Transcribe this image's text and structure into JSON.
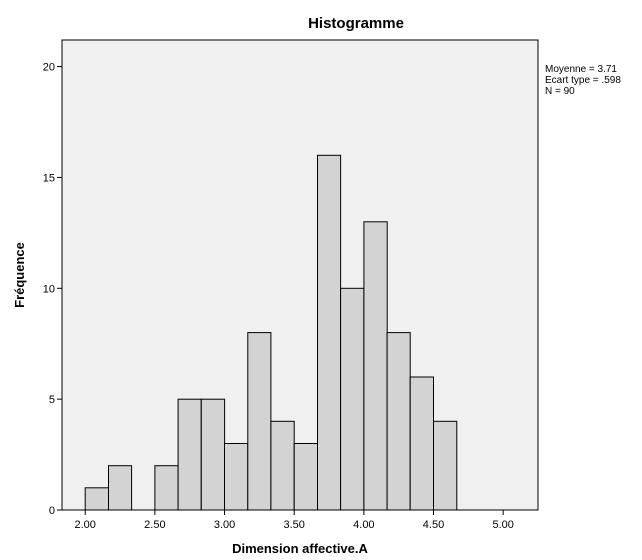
{
  "chart_data": {
    "type": "bar",
    "title": "Histogramme",
    "xlabel": "Dimension affective.A",
    "ylabel": "Fréquence",
    "xlim": [
      1.8333,
      5.25
    ],
    "ylim": [
      0,
      21.2
    ],
    "x_ticks": [
      {
        "value": 2.0,
        "label": "2.00"
      },
      {
        "value": 2.5,
        "label": "2.50"
      },
      {
        "value": 3.0,
        "label": "3.00"
      },
      {
        "value": 3.5,
        "label": "3.50"
      },
      {
        "value": 4.0,
        "label": "4.00"
      },
      {
        "value": 4.5,
        "label": "4.50"
      },
      {
        "value": 5.0,
        "label": "5.00"
      }
    ],
    "y_ticks": [
      {
        "value": 0,
        "label": "0"
      },
      {
        "value": 5,
        "label": "5"
      },
      {
        "value": 10,
        "label": "10"
      },
      {
        "value": 15,
        "label": "15"
      },
      {
        "value": 20,
        "label": "20"
      }
    ],
    "bins": [
      {
        "start": 2.0,
        "end": 2.167,
        "count": 1
      },
      {
        "start": 2.167,
        "end": 2.333,
        "count": 2
      },
      {
        "start": 2.333,
        "end": 2.5,
        "count": 0
      },
      {
        "start": 2.5,
        "end": 2.667,
        "count": 2
      },
      {
        "start": 2.667,
        "end": 2.833,
        "count": 5
      },
      {
        "start": 2.833,
        "end": 3.0,
        "count": 5
      },
      {
        "start": 3.0,
        "end": 3.167,
        "count": 3
      },
      {
        "start": 3.167,
        "end": 3.333,
        "count": 8
      },
      {
        "start": 3.333,
        "end": 3.5,
        "count": 4
      },
      {
        "start": 3.5,
        "end": 3.667,
        "count": 3
      },
      {
        "start": 3.667,
        "end": 3.833,
        "count": 16
      },
      {
        "start": 3.833,
        "end": 4.0,
        "count": 10
      },
      {
        "start": 4.0,
        "end": 4.167,
        "count": 13
      },
      {
        "start": 4.167,
        "end": 4.333,
        "count": 8
      },
      {
        "start": 4.333,
        "end": 4.5,
        "count": 6
      },
      {
        "start": 4.5,
        "end": 4.667,
        "count": 4
      }
    ],
    "stats": [
      "Moyenne = 3.71",
      "Ecart type = .598",
      "N = 90"
    ],
    "grid": false,
    "legend": "right"
  },
  "colors": {
    "plot_background": "#f0f0f0",
    "bar_fill": "#d3d3d3",
    "bar_stroke": "#000000",
    "axis": "#000000"
  }
}
